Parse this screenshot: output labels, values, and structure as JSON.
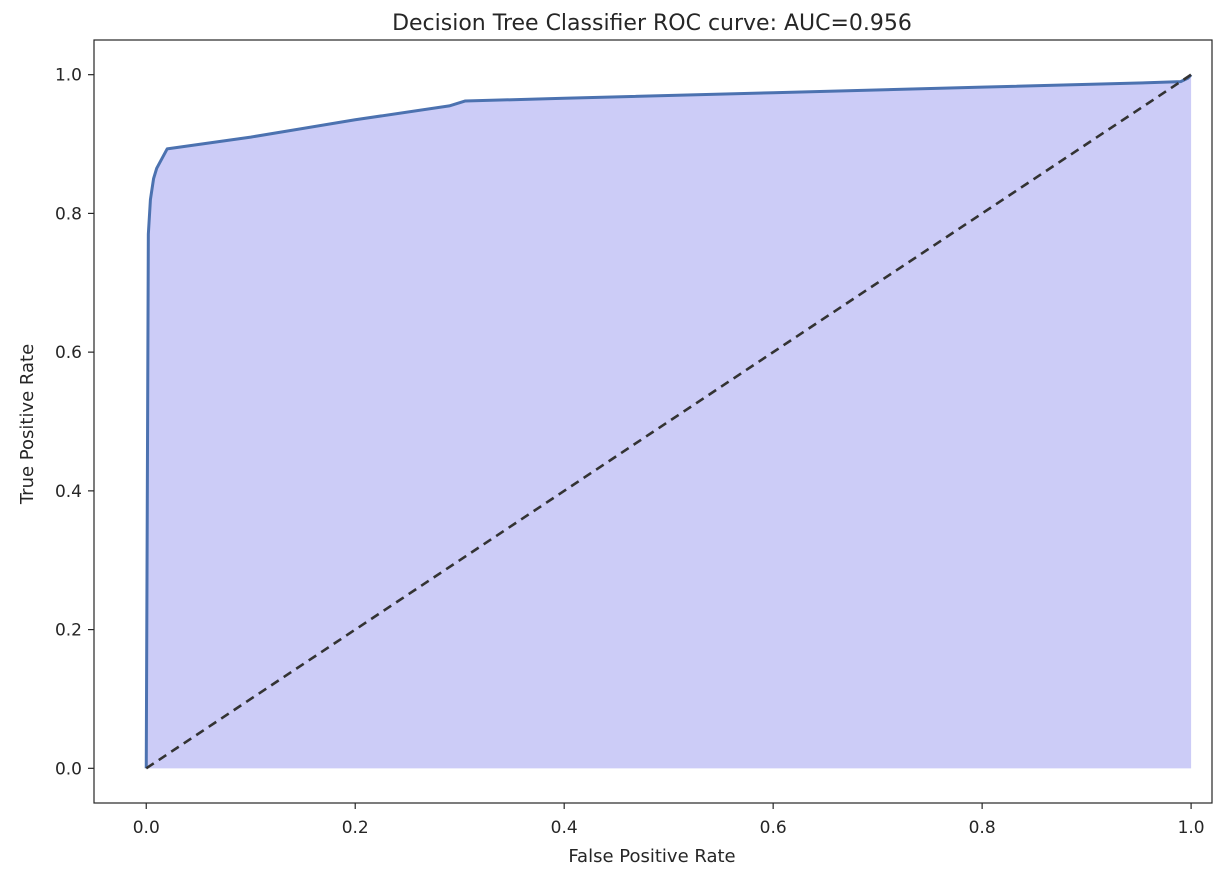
{
  "chart_data": {
    "type": "area",
    "title": "Decision Tree Classifier ROC curve: AUC=0.956",
    "xlabel": "False Positive Rate",
    "ylabel": "True Positive Rate",
    "xlim": [
      -0.05,
      1.02
    ],
    "ylim": [
      -0.05,
      1.05
    ],
    "xticks": [
      "0.0",
      "0.2",
      "0.4",
      "0.6",
      "0.8",
      "1.0"
    ],
    "yticks": [
      "0.0",
      "0.2",
      "0.4",
      "0.6",
      "0.8",
      "1.0"
    ],
    "grid": false,
    "series": [
      {
        "x": [
          0.0,
          0.002,
          0.004,
          0.007,
          0.01,
          0.02,
          0.1,
          0.2,
          0.29,
          0.305,
          0.4,
          0.6,
          0.8,
          0.95,
          0.99,
          0.997,
          1.0
        ],
        "y": [
          0.0,
          0.77,
          0.82,
          0.85,
          0.865,
          0.893,
          0.91,
          0.935,
          0.955,
          0.962,
          0.966,
          0.974,
          0.982,
          0.988,
          0.99,
          0.995,
          1.0
        ],
        "color": "#4c72b0",
        "fill": "#ccccf7"
      },
      {
        "x": [
          0.0,
          1.0
        ],
        "y": [
          0.0,
          1.0
        ],
        "color": "#333333",
        "linestyle": "dashed"
      }
    ]
  }
}
